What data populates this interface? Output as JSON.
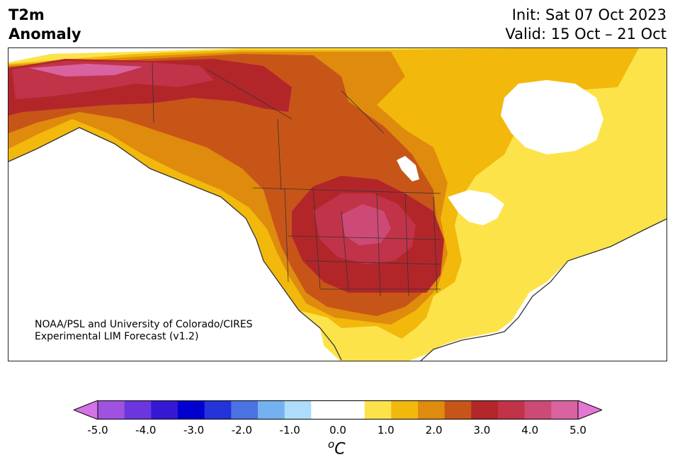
{
  "title": {
    "left_line1": "T2m",
    "left_line2": "Anomaly",
    "init": "Init: Sat 07 Oct 2023",
    "valid": "Valid: 15 Oct – 21 Oct"
  },
  "credit": {
    "line1": "NOAA/PSL and University of Colorado/CIRES",
    "line2": "Experimental LIM Forecast (v1.2)"
  },
  "colorbar": {
    "colors": [
      "#d473e6",
      "#9f52e0",
      "#6c36df",
      "#3419d4",
      "#0000d0",
      "#2433da",
      "#4a72e2",
      "#74b1f0",
      "#aedcfa",
      "#ffffff",
      "#ffffff",
      "#fce34a",
      "#f2b80c",
      "#df8b0d",
      "#c75518",
      "#b2262a",
      "#c13349",
      "#ce4a76",
      "#d963a0",
      "#e476d4"
    ],
    "tick_labels": [
      "-5.0",
      "-4.0",
      "-3.0",
      "-2.0",
      "-1.0",
      "0.0",
      "1.0",
      "2.0",
      "3.0",
      "4.0",
      "5.0"
    ],
    "unit_base": "C",
    "unit_sup": "o"
  }
}
